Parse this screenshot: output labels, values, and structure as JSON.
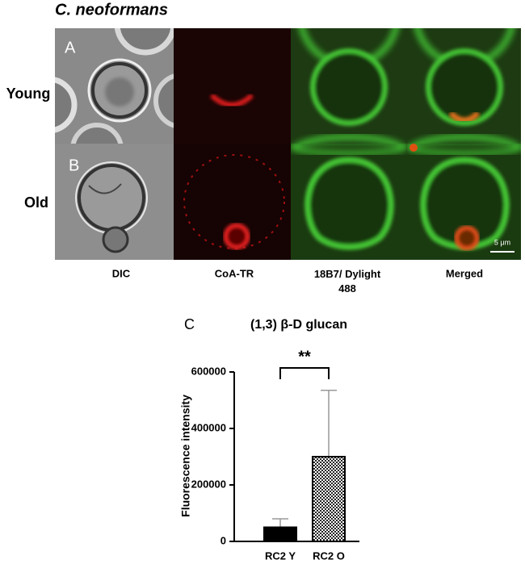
{
  "figure": {
    "title": "C. neoformans",
    "panel_a": "A",
    "panel_b": "B",
    "panel_c": "C",
    "rows": [
      "Young",
      "Old"
    ],
    "columns": [
      "DIC",
      "CoA-TR",
      "18B7/ Dylight 488",
      "Merged"
    ],
    "scale_bar": "5 μm"
  },
  "chart_data": {
    "type": "bar",
    "title": "(1,3) β-D glucan",
    "y_label": "Fluorescence intensity",
    "categories": [
      "RC2 Y",
      "RC2 O"
    ],
    "values": [
      50000,
      300000
    ],
    "errors": [
      30000,
      235000
    ],
    "colors": [
      "#000000",
      "#000000"
    ],
    "patterns": [
      "solid",
      "checker"
    ],
    "annotation": "**",
    "ylim": [
      0,
      600000
    ],
    "yticks": [
      0,
      200000,
      400000,
      600000
    ]
  }
}
